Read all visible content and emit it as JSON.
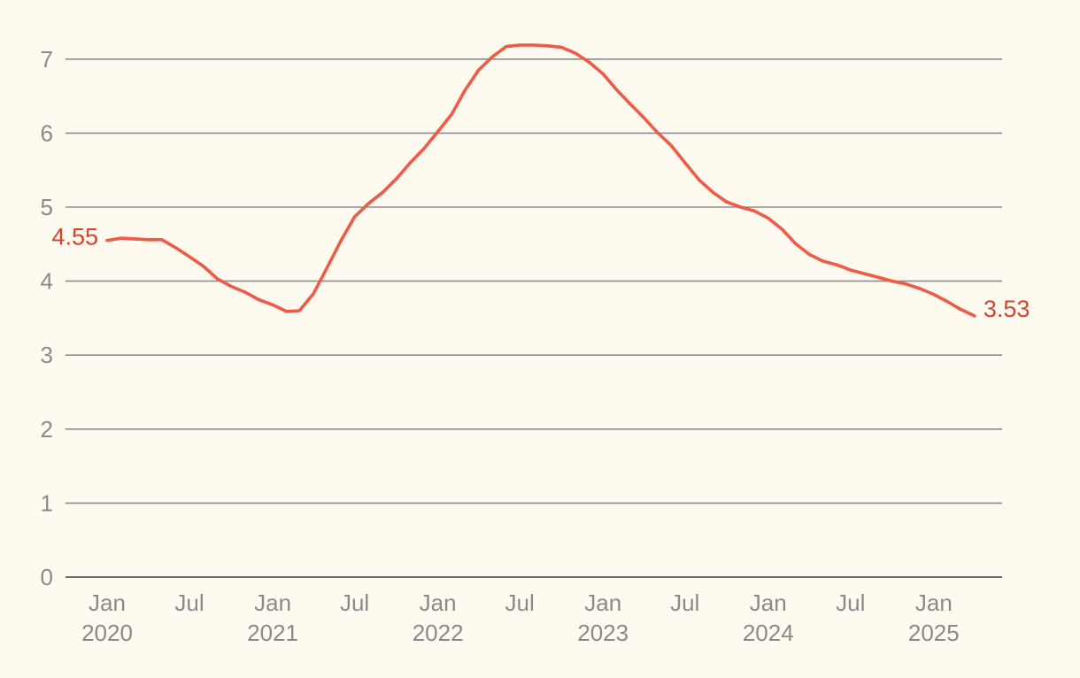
{
  "chart_data": {
    "type": "line",
    "title": "",
    "xlabel": "",
    "ylabel": "",
    "ylim": [
      0,
      7.6
    ],
    "xlim": [
      "2019-10-01",
      "2025-06-01"
    ],
    "grid": true,
    "legend": "none",
    "y_ticks": [
      {
        "value": 0,
        "label": "0"
      },
      {
        "value": 1,
        "label": "1"
      },
      {
        "value": 2,
        "label": "2"
      },
      {
        "value": 3,
        "label": "3"
      },
      {
        "value": 4,
        "label": "4"
      },
      {
        "value": 5,
        "label": "5"
      },
      {
        "value": 6,
        "label": "6"
      },
      {
        "value": 7,
        "label": "7"
      }
    ],
    "x_ticks": [
      {
        "date": "2020-01-01",
        "label": [
          "Jan",
          "2020"
        ]
      },
      {
        "date": "2020-07-01",
        "label": [
          "Jul"
        ]
      },
      {
        "date": "2021-01-01",
        "label": [
          "Jan",
          "2021"
        ]
      },
      {
        "date": "2021-07-01",
        "label": [
          "Jul"
        ]
      },
      {
        "date": "2022-01-01",
        "label": [
          "Jan",
          "2022"
        ]
      },
      {
        "date": "2022-07-01",
        "label": [
          "Jul"
        ]
      },
      {
        "date": "2023-01-01",
        "label": [
          "Jan",
          "2023"
        ]
      },
      {
        "date": "2023-07-01",
        "label": [
          "Jul"
        ]
      },
      {
        "date": "2024-01-01",
        "label": [
          "Jan",
          "2024"
        ]
      },
      {
        "date": "2024-07-01",
        "label": [
          "Jul"
        ]
      },
      {
        "date": "2025-01-01",
        "label": [
          "Jan",
          "2025"
        ]
      }
    ],
    "series": [
      {
        "color": "#ef5b45",
        "points": [
          [
            "2020-01-01",
            4.55
          ],
          [
            "2020-02-01",
            4.58
          ],
          [
            "2020-03-01",
            4.57
          ],
          [
            "2020-04-01",
            4.56
          ],
          [
            "2020-05-01",
            4.56
          ],
          [
            "2020-06-01",
            4.45
          ],
          [
            "2020-07-01",
            4.33
          ],
          [
            "2020-08-01",
            4.2
          ],
          [
            "2020-09-01",
            4.03
          ],
          [
            "2020-10-01",
            3.93
          ],
          [
            "2020-11-01",
            3.85
          ],
          [
            "2020-12-01",
            3.75
          ],
          [
            "2021-01-01",
            3.68
          ],
          [
            "2021-02-01",
            3.59
          ],
          [
            "2021-03-01",
            3.6
          ],
          [
            "2021-04-01",
            3.83
          ],
          [
            "2021-05-01",
            4.18
          ],
          [
            "2021-06-01",
            4.55
          ],
          [
            "2021-07-01",
            4.87
          ],
          [
            "2021-08-01",
            5.05
          ],
          [
            "2021-09-01",
            5.2
          ],
          [
            "2021-10-01",
            5.38
          ],
          [
            "2021-11-01",
            5.6
          ],
          [
            "2021-12-01",
            5.79
          ],
          [
            "2022-01-01",
            6.02
          ],
          [
            "2022-02-01",
            6.26
          ],
          [
            "2022-03-01",
            6.57
          ],
          [
            "2022-04-01",
            6.85
          ],
          [
            "2022-05-01",
            7.03
          ],
          [
            "2022-06-01",
            7.17
          ],
          [
            "2022-07-01",
            7.19
          ],
          [
            "2022-08-01",
            7.19
          ],
          [
            "2022-09-01",
            7.18
          ],
          [
            "2022-10-01",
            7.16
          ],
          [
            "2022-11-01",
            7.08
          ],
          [
            "2022-12-01",
            6.96
          ],
          [
            "2023-01-01",
            6.8
          ],
          [
            "2023-02-01",
            6.58
          ],
          [
            "2023-03-01",
            6.4
          ],
          [
            "2023-04-01",
            6.21
          ],
          [
            "2023-05-01",
            6.01
          ],
          [
            "2023-06-01",
            5.83
          ],
          [
            "2023-07-01",
            5.6
          ],
          [
            "2023-08-01",
            5.37
          ],
          [
            "2023-09-01",
            5.2
          ],
          [
            "2023-10-01",
            5.07
          ],
          [
            "2023-11-01",
            5.0
          ],
          [
            "2023-12-01",
            4.95
          ],
          [
            "2024-01-01",
            4.85
          ],
          [
            "2024-02-01",
            4.7
          ],
          [
            "2024-03-01",
            4.51
          ],
          [
            "2024-04-01",
            4.36
          ],
          [
            "2024-05-01",
            4.27
          ],
          [
            "2024-06-01",
            4.22
          ],
          [
            "2024-07-01",
            4.15
          ],
          [
            "2024-08-01",
            4.1
          ],
          [
            "2024-09-01",
            4.05
          ],
          [
            "2024-10-01",
            4.0
          ],
          [
            "2024-11-01",
            3.96
          ],
          [
            "2024-12-01",
            3.9
          ],
          [
            "2025-01-01",
            3.82
          ],
          [
            "2025-02-01",
            3.72
          ],
          [
            "2025-03-01",
            3.62
          ],
          [
            "2025-04-01",
            3.53
          ]
        ]
      }
    ],
    "annotations": [
      {
        "text": "4.55",
        "at": "start",
        "color": "#d6442e"
      },
      {
        "text": "3.53",
        "at": "end",
        "color": "#d6442e"
      }
    ]
  }
}
